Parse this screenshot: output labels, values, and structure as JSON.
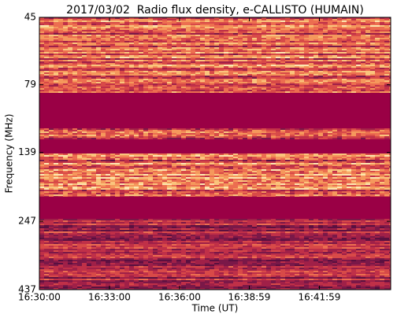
{
  "chart_data": {
    "type": "spectrogram",
    "title": "2017/03/02  Radio flux density, e-CALLISTO (HUMAIN)",
    "x_label": "Time (UT)",
    "y_label": "Frequency (MHz)",
    "xlim": [
      59400,
      60302
    ],
    "xticks": [
      {
        "value": 59400,
        "label": "16:30:00"
      },
      {
        "value": 59580,
        "label": "16:33:00"
      },
      {
        "value": 59760,
        "label": "16:36:00"
      },
      {
        "value": 59939,
        "label": "16:38:59"
      },
      {
        "value": 60119,
        "label": "16:41:59"
      }
    ],
    "ylim": [
      45,
      437
    ],
    "yticks": [
      45,
      79,
      139,
      247,
      437
    ],
    "y_scale": "log",
    "y_inverted": true
  }
}
